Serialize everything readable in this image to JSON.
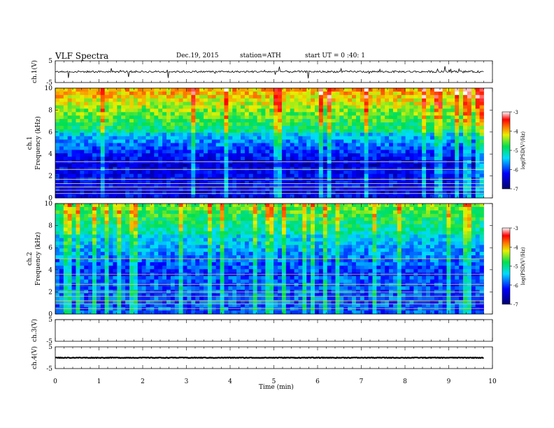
{
  "header": {
    "title": "VLF  Spectra",
    "date": "Dec.19, 2015",
    "station": "station=ATH",
    "start_ut": "start  UT =   0 :40: 1"
  },
  "colors": {
    "spectrogram_low": "#00008b",
    "spectrogram_high": "#8b0000",
    "trace": "#000000"
  },
  "chart_data": [
    {
      "type": "line",
      "name": "ch.1",
      "ylabel": "ch.1(V)",
      "ylim": [
        -5,
        5
      ],
      "y_ticks": [
        "5",
        "-5"
      ],
      "baseline": 0,
      "xlim": [
        0,
        10
      ]
    },
    {
      "type": "heatmap",
      "ylabel_channel": "ch.1",
      "ylabel": "Frequency  (kHz)",
      "ylim": [
        0,
        10
      ],
      "y_ticks": [
        "0",
        "2",
        "4",
        "6",
        "8",
        "10"
      ],
      "xlim": [
        0,
        10
      ],
      "colorbar": {
        "label": "log(PSD(V²/Hz)",
        "range": [
          -7,
          -3
        ],
        "ticks": [
          "-3",
          "-4",
          "-5",
          "-6",
          "-7"
        ]
      }
    },
    {
      "type": "heatmap",
      "ylabel_channel": "ch.2",
      "ylabel": "Frequency  (kHz)",
      "ylim": [
        0,
        10
      ],
      "y_ticks": [
        "0",
        "2",
        "4",
        "6",
        "8",
        "10"
      ],
      "xlim": [
        0,
        10
      ],
      "colorbar": {
        "label": "log(PSD(V²/Hz)",
        "range": [
          -7,
          -3
        ],
        "ticks": [
          "-3",
          "-4",
          "-5",
          "-6",
          "-7"
        ]
      }
    },
    {
      "type": "line",
      "name": "ch.3",
      "ylabel": "ch.3(V)",
      "ylim": [
        -5,
        5
      ],
      "y_ticks": [
        "5",
        "-5"
      ],
      "baseline": 5,
      "xlim": [
        0,
        10
      ]
    },
    {
      "type": "line",
      "name": "ch.4",
      "ylabel": "ch.4(V)",
      "ylim": [
        -5,
        5
      ],
      "y_ticks": [
        "5",
        "-5"
      ],
      "baseline": 0,
      "xlim": [
        0,
        10
      ]
    }
  ],
  "x_axis": {
    "label": "Time  (min)",
    "ticks": [
      "0",
      "1",
      "2",
      "3",
      "4",
      "5",
      "6",
      "7",
      "8",
      "9",
      "10"
    ],
    "range": [
      0,
      10
    ],
    "data_end": 9.8
  }
}
